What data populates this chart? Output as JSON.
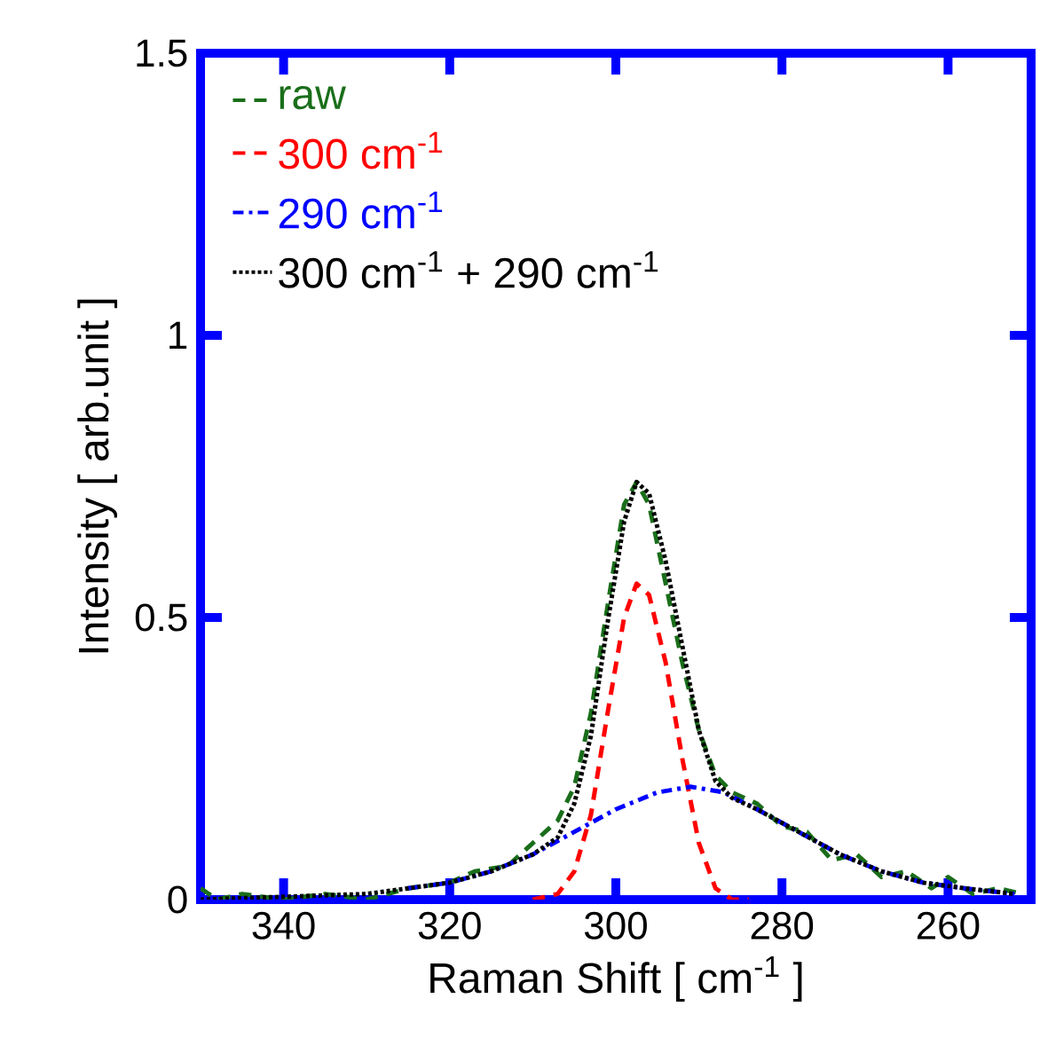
{
  "chart_data": {
    "type": "line",
    "xlabel": "Raman Shift [ cm$^{-1}$ ]",
    "ylabel": "Intensity [ arb.unit ]",
    "xlim": [
      350,
      250
    ],
    "ylim": [
      0,
      1.5
    ],
    "xticks": [
      340,
      320,
      300,
      280,
      260
    ],
    "yticks": [
      {
        "value": 0,
        "label": "0"
      },
      {
        "value": 0.5,
        "label": "0.5"
      },
      {
        "value": 1,
        "label": "1"
      },
      {
        "value": 1.5,
        "label": "1.5"
      }
    ],
    "legend": "top left",
    "series": [
      {
        "name": "raw",
        "color": "#1a6e1a",
        "line_style": "dashed",
        "x": [
          350,
          348,
          345,
          340,
          335,
          330,
          325,
          320,
          317,
          313,
          310,
          307,
          305,
          303,
          301,
          299,
          297.5,
          296,
          294,
          292,
          290,
          288,
          286,
          283,
          280,
          277,
          274,
          271,
          268,
          265,
          262,
          260,
          257,
          254,
          251
        ],
        "values": [
          0.02,
          0.0,
          0.01,
          0.0,
          0.01,
          0.0,
          0.02,
          0.03,
          0.05,
          0.06,
          0.1,
          0.14,
          0.2,
          0.33,
          0.52,
          0.7,
          0.74,
          0.7,
          0.56,
          0.42,
          0.3,
          0.22,
          0.19,
          0.17,
          0.13,
          0.12,
          0.07,
          0.08,
          0.04,
          0.05,
          0.02,
          0.04,
          0.01,
          0.02,
          0.01
        ]
      },
      {
        "name": "300 cm$^{-1}$",
        "color": "#ff0000",
        "line_style": "dashed",
        "x": [
          310,
          307,
          305,
          303,
          301,
          299,
          297.5,
          296,
          294,
          292,
          290,
          288,
          286,
          284
        ],
        "values": [
          0,
          0.01,
          0.05,
          0.15,
          0.33,
          0.5,
          0.56,
          0.54,
          0.42,
          0.25,
          0.1,
          0.02,
          0,
          0
        ]
      },
      {
        "name": "290 cm$^{-1}$",
        "color": "#0000ff",
        "line_style": "dashdot",
        "x": [
          325,
          320,
          315,
          310,
          305,
          300,
          295,
          291,
          287,
          283,
          278,
          273,
          268,
          263,
          258,
          252
        ],
        "values": [
          0.02,
          0.03,
          0.05,
          0.08,
          0.12,
          0.16,
          0.19,
          0.2,
          0.19,
          0.16,
          0.12,
          0.08,
          0.05,
          0.03,
          0.02,
          0.01
        ]
      },
      {
        "name": "300 cm$^{-1}$ + 290 cm$^{-1}$",
        "color": "#000000",
        "line_style": "dotted",
        "x": [
          350,
          340,
          330,
          325,
          320,
          315,
          310,
          307,
          305,
          303,
          301,
          299,
          297.5,
          296,
          294,
          292,
          290,
          288,
          286,
          283,
          278,
          273,
          268,
          263,
          258,
          252
        ],
        "values": [
          0,
          0.005,
          0.01,
          0.02,
          0.03,
          0.05,
          0.08,
          0.11,
          0.17,
          0.29,
          0.49,
          0.67,
          0.74,
          0.72,
          0.6,
          0.45,
          0.3,
          0.21,
          0.18,
          0.16,
          0.12,
          0.08,
          0.05,
          0.03,
          0.02,
          0.01
        ]
      }
    ]
  }
}
